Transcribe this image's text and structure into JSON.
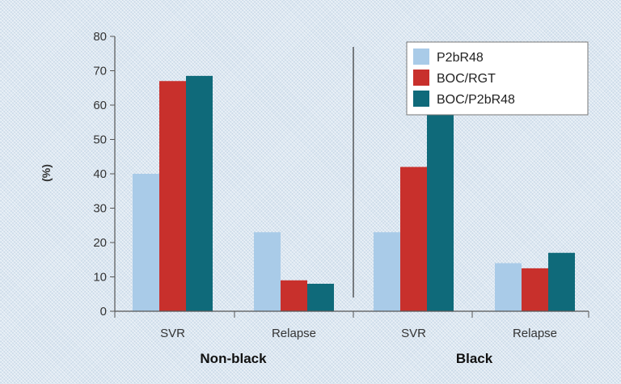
{
  "chart_data": {
    "type": "bar",
    "ylabel": "(%)",
    "ylim": [
      0,
      80
    ],
    "yticks": [
      0,
      10,
      20,
      30,
      40,
      50,
      60,
      70,
      80
    ],
    "groups": [
      {
        "label": "Non-black",
        "categories": [
          "SVR",
          "Relapse"
        ],
        "series": [
          {
            "name": "P2bR48",
            "values": [
              40,
              23
            ]
          },
          {
            "name": "BOC/RGT",
            "values": [
              67,
              9
            ]
          },
          {
            "name": "BOC/P2bR48",
            "values": [
              68.5,
              8
            ]
          }
        ]
      },
      {
        "label": "Black",
        "categories": [
          "SVR",
          "Relapse"
        ],
        "series": [
          {
            "name": "P2bR48",
            "values": [
              23,
              14
            ]
          },
          {
            "name": "BOC/RGT",
            "values": [
              42,
              12.5
            ]
          },
          {
            "name": "BOC/P2bR48",
            "values": [
              63.5,
              17
            ]
          }
        ]
      }
    ],
    "legend": {
      "position": "top-right",
      "entries": [
        "P2bR48",
        "BOC/RGT",
        "BOC/P2bR48"
      ]
    },
    "colors": [
      "#a9cbe8",
      "#c8302c",
      "#0f6a7a"
    ],
    "grid": false
  }
}
